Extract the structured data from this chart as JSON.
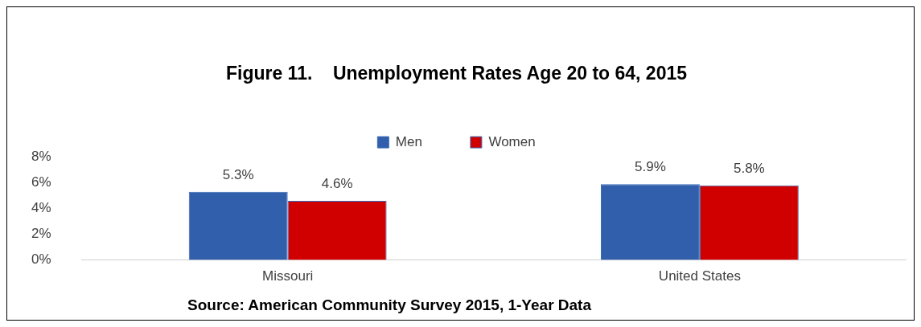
{
  "chart_data": {
    "type": "bar",
    "title": "Figure 11.    Unemployment Rates Age 20 to 64, 2015",
    "categories": [
      "Missouri",
      "United States"
    ],
    "series": [
      {
        "name": "Men",
        "color": "#325fac",
        "values": [
          5.3,
          5.9
        ],
        "value_labels": [
          "5.3%",
          "5.9%"
        ]
      },
      {
        "name": "Women",
        "color": "#d00000",
        "values": [
          4.6,
          5.8
        ],
        "value_labels": [
          "4.6%",
          "5.8%"
        ]
      }
    ],
    "ylim": [
      0,
      8
    ],
    "yticks": [
      {
        "value": 0,
        "label": "0%"
      },
      {
        "value": 2,
        "label": "2%"
      },
      {
        "value": 4,
        "label": "4%"
      },
      {
        "value": 6,
        "label": "6%"
      },
      {
        "value": 8,
        "label": "8%"
      }
    ],
    "grid": false,
    "legend": "top",
    "annotations": [
      "Source: American Community Survey 2015, 1-Year Data"
    ]
  }
}
